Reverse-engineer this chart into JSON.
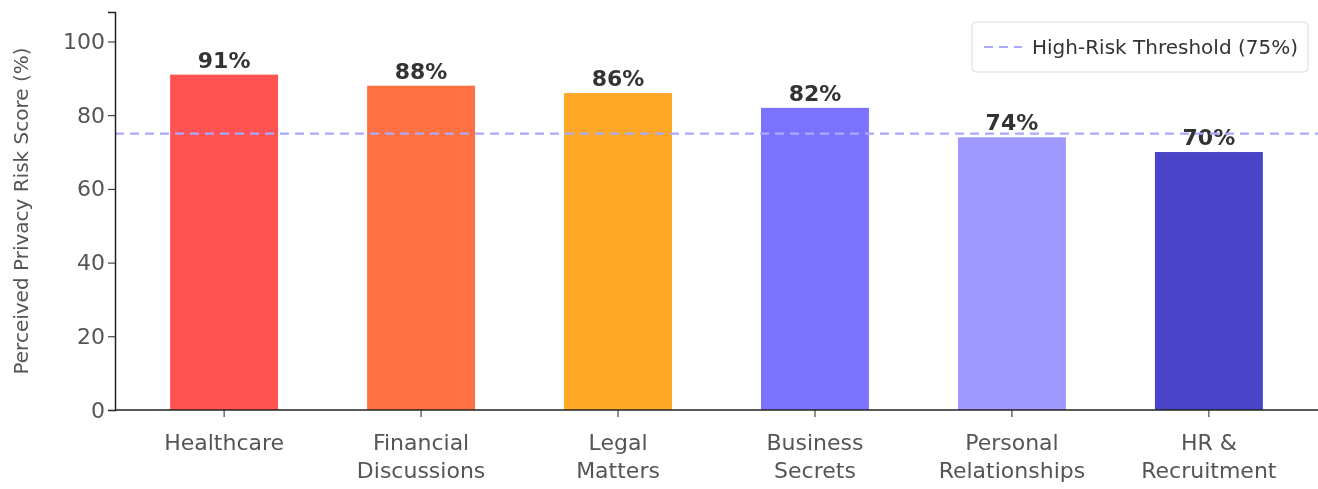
{
  "chart_data": {
    "type": "bar",
    "ylabel": "Perceived Privacy Risk Score (%)",
    "categories": [
      "Healthcare",
      "Financial Discussions",
      "Legal Matters",
      "Business Secrets",
      "Personal Relationships",
      "HR & Recruitment"
    ],
    "values": [
      91,
      88,
      86,
      82,
      74,
      70
    ],
    "colors": [
      "#ff5252",
      "#ff7043",
      "#ffa726",
      "#7b73ff",
      "#9e98ff",
      "#4a44c8"
    ],
    "value_labels": [
      "91%",
      "88%",
      "86%",
      "82%",
      "74%",
      "70%"
    ],
    "ylim": [
      0,
      108
    ],
    "yticks": [
      0,
      20,
      40,
      60,
      80,
      100
    ],
    "grid": false,
    "legend": "top right",
    "ref_lines": [
      {
        "axis": "y",
        "value": 75,
        "label": "High-Risk Threshold (75%)",
        "color": "#a9a9ff",
        "line_style": "dashed"
      }
    ]
  }
}
